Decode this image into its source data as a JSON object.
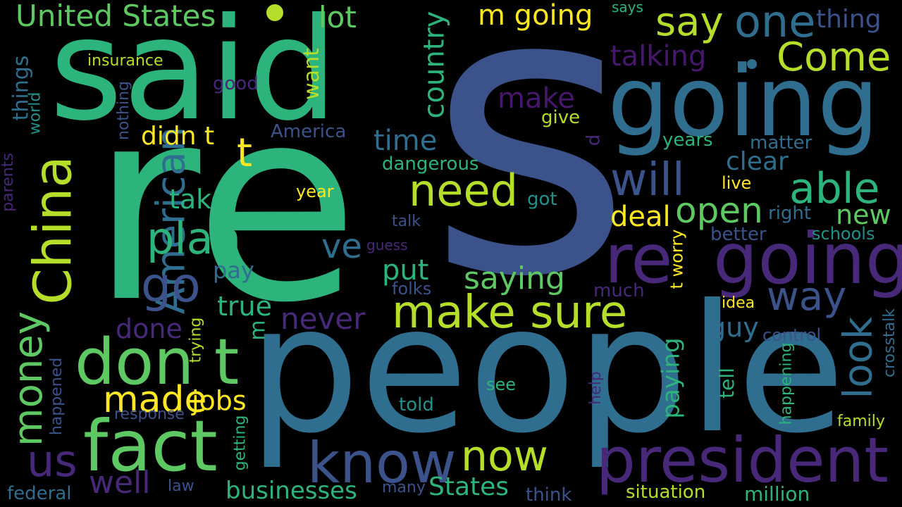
{
  "palette": {
    "background": "#000000",
    "teal_green": "#2db47c",
    "blue": "#3b528b",
    "steel_blue": "#2f6e8e",
    "purple": "#482878",
    "dark_purple": "#46176a",
    "green": "#5ec962",
    "lime": "#b5de2b",
    "yellow": "#fde725",
    "cyan_teal": "#21918c"
  },
  "words": [
    {
      "id": "s",
      "text": "s"
    },
    {
      "id": "re-big",
      "text": "re"
    },
    {
      "id": "people",
      "text": "people"
    },
    {
      "id": "said",
      "text": "said"
    },
    {
      "id": "going-1",
      "text": "going"
    },
    {
      "id": "going-2",
      "text": "going"
    },
    {
      "id": "re-small",
      "text": "re"
    },
    {
      "id": "president",
      "text": "president"
    },
    {
      "id": "fact",
      "text": "fact"
    },
    {
      "id": "don-t",
      "text": "don t"
    },
    {
      "id": "make-sure",
      "text": "make sure"
    },
    {
      "id": "know",
      "text": "know"
    },
    {
      "id": "china",
      "text": "China"
    },
    {
      "id": "united-states",
      "text": "United States"
    },
    {
      "id": "one",
      "text": "one"
    },
    {
      "id": "say",
      "text": "say"
    },
    {
      "id": "come",
      "text": "Come"
    },
    {
      "id": "will",
      "text": "will"
    },
    {
      "id": "able",
      "text": "able"
    },
    {
      "id": "need",
      "text": "need"
    },
    {
      "id": "plan",
      "text": "plan"
    },
    {
      "id": "go",
      "text": "go"
    },
    {
      "id": "american",
      "text": "American"
    },
    {
      "id": "money",
      "text": "money"
    },
    {
      "id": "us",
      "text": "us"
    },
    {
      "id": "well",
      "text": "well"
    },
    {
      "id": "now",
      "text": "now"
    },
    {
      "id": "made",
      "text": "made"
    },
    {
      "id": "jobs",
      "text": "jobs"
    },
    {
      "id": "lot",
      "text": "lot"
    },
    {
      "id": "m-going",
      "text": "m going"
    },
    {
      "id": "thing",
      "text": "thing"
    },
    {
      "id": "talking",
      "text": "talking"
    },
    {
      "id": "country",
      "text": "country"
    },
    {
      "id": "open",
      "text": "open"
    },
    {
      "id": "way",
      "text": "way"
    },
    {
      "id": "look",
      "text": "look"
    },
    {
      "id": "make",
      "text": "make"
    },
    {
      "id": "time",
      "text": "time"
    },
    {
      "id": "t-1",
      "text": "t"
    },
    {
      "id": "ve",
      "text": "ve"
    },
    {
      "id": "saying",
      "text": "saying"
    },
    {
      "id": "didn-t",
      "text": "didn t"
    },
    {
      "id": "deal",
      "text": "deal"
    },
    {
      "id": "take",
      "text": "take"
    },
    {
      "id": "new",
      "text": "new"
    },
    {
      "id": "never",
      "text": "never"
    },
    {
      "id": "done",
      "text": "done"
    },
    {
      "id": "true",
      "text": "true"
    },
    {
      "id": "put",
      "text": "put"
    },
    {
      "id": "pay",
      "text": "pay"
    },
    {
      "id": "guy",
      "text": "guy"
    },
    {
      "id": "paying",
      "text": "paying"
    },
    {
      "id": "clear",
      "text": "clear"
    },
    {
      "id": "businesses",
      "text": "businesses"
    },
    {
      "id": "states",
      "text": "States"
    },
    {
      "id": "things",
      "text": "things"
    },
    {
      "id": "want",
      "text": "want"
    },
    {
      "id": "insurance",
      "text": "insurance"
    },
    {
      "id": "good",
      "text": "good"
    },
    {
      "id": "america",
      "text": "America"
    },
    {
      "id": "dangerous",
      "text": "dangerous"
    },
    {
      "id": "give",
      "text": "give"
    },
    {
      "id": "years",
      "text": "years"
    },
    {
      "id": "matter",
      "text": "matter"
    },
    {
      "id": "live",
      "text": "live"
    },
    {
      "id": "right",
      "text": "right"
    },
    {
      "id": "better",
      "text": "better"
    },
    {
      "id": "schools",
      "text": "schools"
    },
    {
      "id": "year",
      "text": "year"
    },
    {
      "id": "got",
      "text": "got"
    },
    {
      "id": "talk",
      "text": "talk"
    },
    {
      "id": "guess",
      "text": "guess"
    },
    {
      "id": "folks",
      "text": "folks"
    },
    {
      "id": "much",
      "text": "much"
    },
    {
      "id": "idea",
      "text": "idea"
    },
    {
      "id": "control",
      "text": "control"
    },
    {
      "id": "m",
      "text": "m"
    },
    {
      "id": "t-worry",
      "text": "t worry"
    },
    {
      "id": "tell",
      "text": "tell"
    },
    {
      "id": "happening",
      "text": "happening"
    },
    {
      "id": "crosstalk",
      "text": "crosstalk"
    },
    {
      "id": "see",
      "text": "see"
    },
    {
      "id": "told",
      "text": "told"
    },
    {
      "id": "response",
      "text": "response"
    },
    {
      "id": "help",
      "text": "help"
    },
    {
      "id": "family",
      "text": "family"
    },
    {
      "id": "situation",
      "text": "situation"
    },
    {
      "id": "million",
      "text": "million"
    },
    {
      "id": "think",
      "text": "think"
    },
    {
      "id": "many",
      "text": "many"
    },
    {
      "id": "law",
      "text": "law"
    },
    {
      "id": "federal",
      "text": "federal"
    },
    {
      "id": "world",
      "text": "world"
    },
    {
      "id": "parents",
      "text": "parents"
    },
    {
      "id": "happened",
      "text": "happened"
    },
    {
      "id": "nothing",
      "text": "nothing"
    },
    {
      "id": "trying",
      "text": "trying"
    },
    {
      "id": "getting",
      "text": "getting"
    },
    {
      "id": "says",
      "text": "says"
    },
    {
      "id": "d",
      "text": "d"
    }
  ]
}
